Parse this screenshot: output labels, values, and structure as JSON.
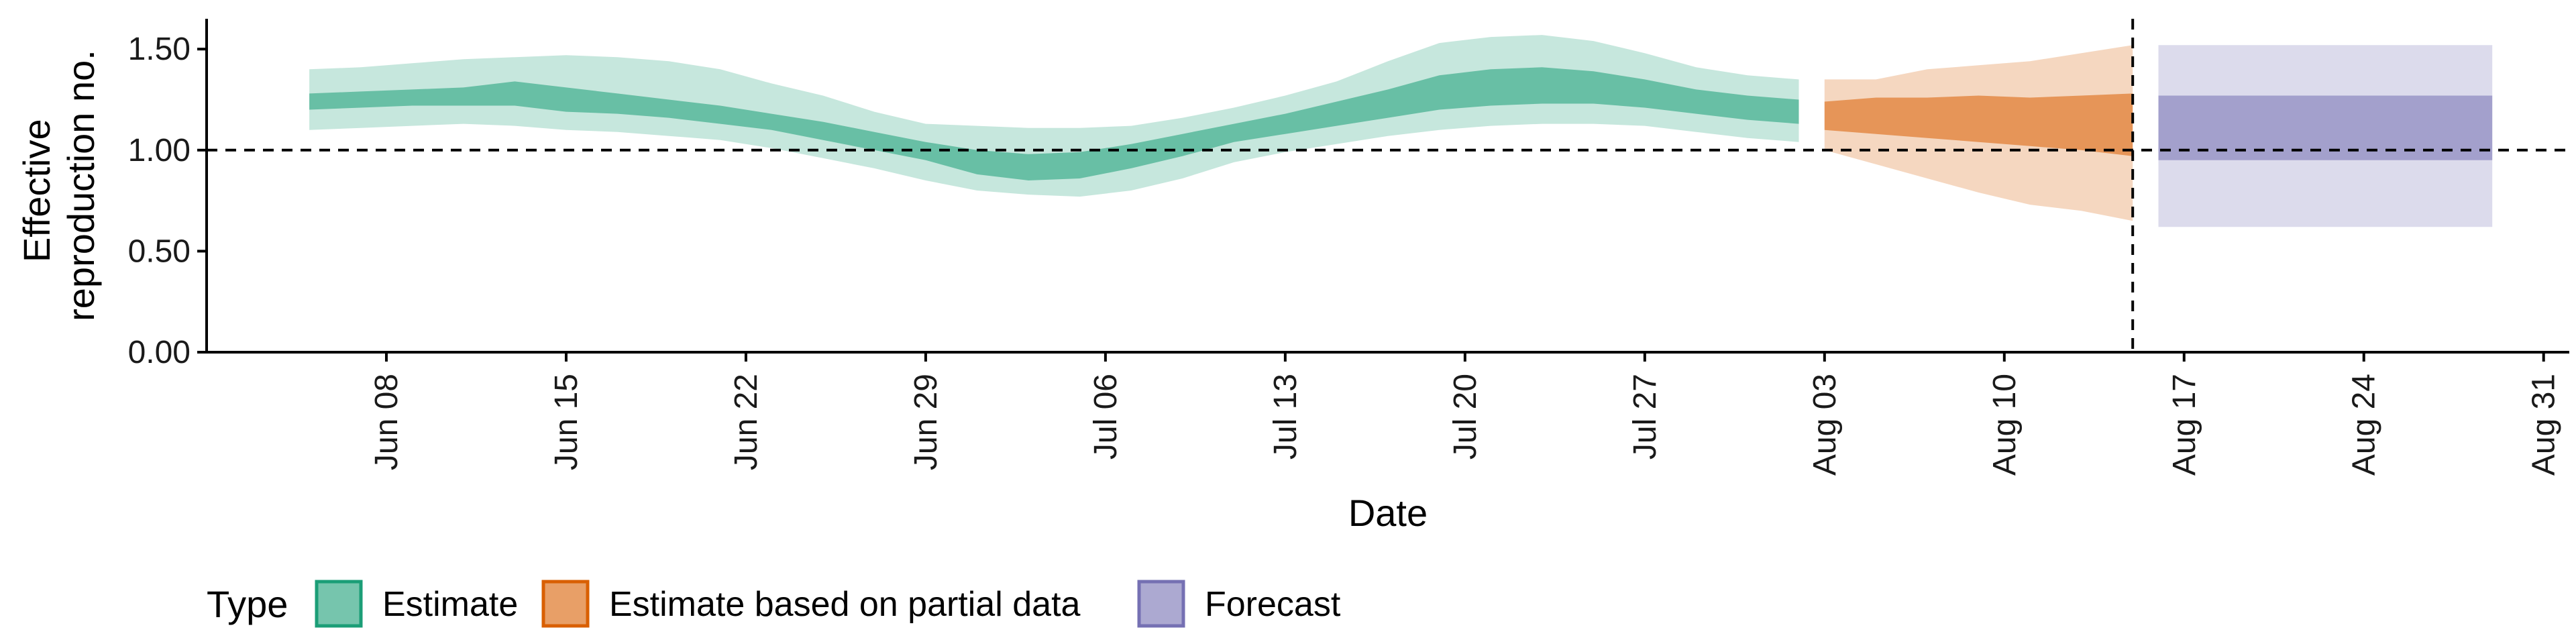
{
  "chart_data": {
    "type": "area",
    "xlabel": "Date",
    "ylabel_lines": [
      "Effective",
      "reproduction no."
    ],
    "ylim": [
      0,
      1.65
    ],
    "xlim": [
      "2020-06-01",
      "2020-09-01"
    ],
    "y_ticks": [
      {
        "value": 0.0,
        "label": "0.00"
      },
      {
        "value": 0.5,
        "label": "0.50"
      },
      {
        "value": 1.0,
        "label": "1.00"
      },
      {
        "value": 1.5,
        "label": "1.50"
      }
    ],
    "x_ticks": [
      {
        "date": "2020-06-08",
        "label": "Jun 08"
      },
      {
        "date": "2020-06-15",
        "label": "Jun 15"
      },
      {
        "date": "2020-06-22",
        "label": "Jun 22"
      },
      {
        "date": "2020-06-29",
        "label": "Jun 29"
      },
      {
        "date": "2020-07-06",
        "label": "Jul 06"
      },
      {
        "date": "2020-07-13",
        "label": "Jul 13"
      },
      {
        "date": "2020-07-20",
        "label": "Jul 20"
      },
      {
        "date": "2020-07-27",
        "label": "Jul 27"
      },
      {
        "date": "2020-08-03",
        "label": "Aug 03"
      },
      {
        "date": "2020-08-10",
        "label": "Aug 10"
      },
      {
        "date": "2020-08-17",
        "label": "Aug 17"
      },
      {
        "date": "2020-08-24",
        "label": "Aug 24"
      },
      {
        "date": "2020-08-31",
        "label": "Aug 31"
      }
    ],
    "reference_lines": {
      "horizontal_y": 1.0,
      "vertical_date": "2020-08-15",
      "style": "dashed"
    },
    "grid": false,
    "legend": {
      "title": "Type",
      "position": "bottom-left"
    },
    "series": [
      {
        "name": "Estimate",
        "fill_color": "#1b9e77",
        "outer_color": "#1b9e77",
        "inner_color": "#1b9e77",
        "points": [
          {
            "date": "2020-06-05",
            "lo90": 1.1,
            "lo50": 1.2,
            "hi50": 1.28,
            "hi90": 1.4
          },
          {
            "date": "2020-06-07",
            "lo90": 1.11,
            "lo50": 1.21,
            "hi50": 1.29,
            "hi90": 1.41
          },
          {
            "date": "2020-06-09",
            "lo90": 1.12,
            "lo50": 1.22,
            "hi50": 1.3,
            "hi90": 1.43
          },
          {
            "date": "2020-06-11",
            "lo90": 1.13,
            "lo50": 1.22,
            "hi50": 1.31,
            "hi90": 1.45
          },
          {
            "date": "2020-06-13",
            "lo90": 1.12,
            "lo50": 1.22,
            "hi50": 1.34,
            "hi90": 1.46
          },
          {
            "date": "2020-06-15",
            "lo90": 1.1,
            "lo50": 1.19,
            "hi50": 1.31,
            "hi90": 1.47
          },
          {
            "date": "2020-06-17",
            "lo90": 1.09,
            "lo50": 1.18,
            "hi50": 1.28,
            "hi90": 1.46
          },
          {
            "date": "2020-06-19",
            "lo90": 1.07,
            "lo50": 1.16,
            "hi50": 1.25,
            "hi90": 1.44
          },
          {
            "date": "2020-06-21",
            "lo90": 1.05,
            "lo50": 1.13,
            "hi50": 1.22,
            "hi90": 1.4
          },
          {
            "date": "2020-06-23",
            "lo90": 1.01,
            "lo50": 1.1,
            "hi50": 1.18,
            "hi90": 1.33
          },
          {
            "date": "2020-06-25",
            "lo90": 0.96,
            "lo50": 1.05,
            "hi50": 1.14,
            "hi90": 1.27
          },
          {
            "date": "2020-06-27",
            "lo90": 0.91,
            "lo50": 1.0,
            "hi50": 1.09,
            "hi90": 1.19
          },
          {
            "date": "2020-06-29",
            "lo90": 0.85,
            "lo50": 0.95,
            "hi50": 1.04,
            "hi90": 1.13
          },
          {
            "date": "2020-07-01",
            "lo90": 0.8,
            "lo50": 0.88,
            "hi50": 1.0,
            "hi90": 1.12
          },
          {
            "date": "2020-07-03",
            "lo90": 0.78,
            "lo50": 0.85,
            "hi50": 0.98,
            "hi90": 1.11
          },
          {
            "date": "2020-07-05",
            "lo90": 0.77,
            "lo50": 0.86,
            "hi50": 0.99,
            "hi90": 1.11
          },
          {
            "date": "2020-07-07",
            "lo90": 0.8,
            "lo50": 0.91,
            "hi50": 1.03,
            "hi90": 1.12
          },
          {
            "date": "2020-07-09",
            "lo90": 0.86,
            "lo50": 0.97,
            "hi50": 1.08,
            "hi90": 1.16
          },
          {
            "date": "2020-07-11",
            "lo90": 0.94,
            "lo50": 1.04,
            "hi50": 1.13,
            "hi90": 1.21
          },
          {
            "date": "2020-07-13",
            "lo90": 0.99,
            "lo50": 1.08,
            "hi50": 1.18,
            "hi90": 1.27
          },
          {
            "date": "2020-07-15",
            "lo90": 1.03,
            "lo50": 1.12,
            "hi50": 1.24,
            "hi90": 1.34
          },
          {
            "date": "2020-07-17",
            "lo90": 1.07,
            "lo50": 1.16,
            "hi50": 1.3,
            "hi90": 1.44
          },
          {
            "date": "2020-07-19",
            "lo90": 1.1,
            "lo50": 1.2,
            "hi50": 1.37,
            "hi90": 1.53
          },
          {
            "date": "2020-07-21",
            "lo90": 1.12,
            "lo50": 1.22,
            "hi50": 1.4,
            "hi90": 1.56
          },
          {
            "date": "2020-07-23",
            "lo90": 1.13,
            "lo50": 1.23,
            "hi50": 1.41,
            "hi90": 1.57
          },
          {
            "date": "2020-07-25",
            "lo90": 1.13,
            "lo50": 1.23,
            "hi50": 1.39,
            "hi90": 1.54
          },
          {
            "date": "2020-07-27",
            "lo90": 1.12,
            "lo50": 1.21,
            "hi50": 1.35,
            "hi90": 1.48
          },
          {
            "date": "2020-07-29",
            "lo90": 1.09,
            "lo50": 1.18,
            "hi50": 1.3,
            "hi90": 1.41
          },
          {
            "date": "2020-07-31",
            "lo90": 1.06,
            "lo50": 1.15,
            "hi50": 1.27,
            "hi90": 1.37
          },
          {
            "date": "2020-08-02",
            "lo90": 1.04,
            "lo50": 1.13,
            "hi50": 1.25,
            "hi90": 1.35
          }
        ]
      },
      {
        "name": "Estimate based on partial data",
        "fill_color": "#d95f02",
        "outer_color": "#d95f02",
        "inner_color": "#d95f02",
        "points": [
          {
            "date": "2020-08-03",
            "lo90": 1.0,
            "lo50": 1.1,
            "hi50": 1.24,
            "hi90": 1.35
          },
          {
            "date": "2020-08-05",
            "lo90": 0.93,
            "lo50": 1.08,
            "hi50": 1.26,
            "hi90": 1.35
          },
          {
            "date": "2020-08-07",
            "lo90": 0.86,
            "lo50": 1.06,
            "hi50": 1.26,
            "hi90": 1.4
          },
          {
            "date": "2020-08-09",
            "lo90": 0.79,
            "lo50": 1.04,
            "hi50": 1.27,
            "hi90": 1.42
          },
          {
            "date": "2020-08-11",
            "lo90": 0.73,
            "lo50": 1.02,
            "hi50": 1.26,
            "hi90": 1.44
          },
          {
            "date": "2020-08-13",
            "lo90": 0.7,
            "lo50": 1.0,
            "hi50": 1.27,
            "hi90": 1.48
          },
          {
            "date": "2020-08-15",
            "lo90": 0.65,
            "lo50": 0.97,
            "hi50": 1.28,
            "hi90": 1.52
          }
        ]
      },
      {
        "name": "Forecast",
        "fill_color": "#7570b3",
        "outer_color": "#7570b3",
        "inner_color": "#7570b3",
        "points": [
          {
            "date": "2020-08-16",
            "lo90": 0.62,
            "lo50": 0.95,
            "hi50": 1.27,
            "hi90": 1.52
          },
          {
            "date": "2020-08-29",
            "lo90": 0.62,
            "lo50": 0.95,
            "hi50": 1.27,
            "hi90": 1.52
          }
        ]
      }
    ]
  }
}
